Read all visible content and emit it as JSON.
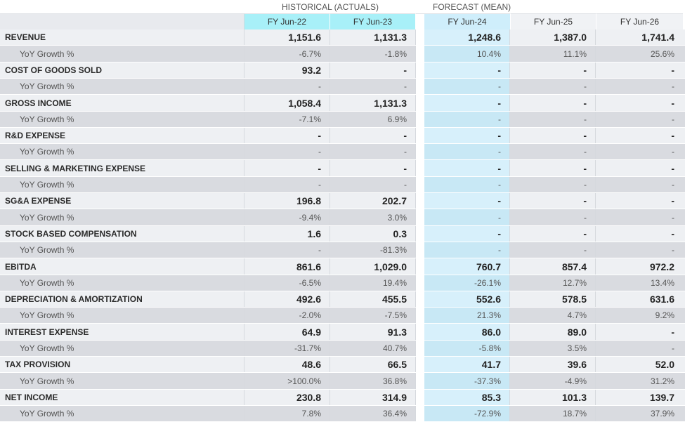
{
  "header": {
    "historical_label": "HISTORICAL (ACTUALS)",
    "forecast_label": "FORECAST (MEAN)",
    "columns": [
      "FY Jun-22",
      "FY Jun-23",
      "FY Jun-24",
      "FY Jun-25",
      "FY Jun-26"
    ]
  },
  "rows": [
    {
      "label": "REVENUE",
      "values": [
        "1,151.6",
        "1,131.3",
        "1,248.6",
        "1,387.0",
        "1,741.4"
      ],
      "growth_label": "YoY Growth %",
      "growth": [
        "-6.7%",
        "-1.8%",
        "10.4%",
        "11.1%",
        "25.6%"
      ]
    },
    {
      "label": "COST OF GOODS SOLD",
      "values": [
        "93.2",
        "-",
        "-",
        "-",
        "-"
      ],
      "growth_label": "YoY Growth %",
      "growth": [
        "-",
        "-",
        "-",
        "-",
        "-"
      ]
    },
    {
      "label": "GROSS INCOME",
      "values": [
        "1,058.4",
        "1,131.3",
        "-",
        "-",
        "-"
      ],
      "growth_label": "YoY Growth %",
      "growth": [
        "-7.1%",
        "6.9%",
        "-",
        "-",
        "-"
      ]
    },
    {
      "label": "R&D EXPENSE",
      "values": [
        "-",
        "-",
        "-",
        "-",
        "-"
      ],
      "growth_label": "YoY Growth %",
      "growth": [
        "-",
        "-",
        "-",
        "-",
        "-"
      ]
    },
    {
      "label": "SELLING & MARKETING EXPENSE",
      "values": [
        "-",
        "-",
        "-",
        "-",
        "-"
      ],
      "growth_label": "YoY Growth %",
      "growth": [
        "-",
        "-",
        "-",
        "-",
        "-"
      ]
    },
    {
      "label": "SG&A EXPENSE",
      "values": [
        "196.8",
        "202.7",
        "-",
        "-",
        "-"
      ],
      "growth_label": "YoY Growth %",
      "growth": [
        "-9.4%",
        "3.0%",
        "-",
        "-",
        "-"
      ]
    },
    {
      "label": "STOCK BASED COMPENSATION",
      "values": [
        "1.6",
        "0.3",
        "-",
        "-",
        "-"
      ],
      "growth_label": "YoY Growth %",
      "growth": [
        "-",
        "-81.3%",
        "-",
        "-",
        "-"
      ]
    },
    {
      "label": "EBITDA",
      "values": [
        "861.6",
        "1,029.0",
        "760.7",
        "857.4",
        "972.2"
      ],
      "growth_label": "YoY Growth %",
      "growth": [
        "-6.5%",
        "19.4%",
        "-26.1%",
        "12.7%",
        "13.4%"
      ]
    },
    {
      "label": "DEPRECIATION & AMORTIZATION",
      "values": [
        "492.6",
        "455.5",
        "552.6",
        "578.5",
        "631.6"
      ],
      "growth_label": "YoY Growth %",
      "growth": [
        "-2.0%",
        "-7.5%",
        "21.3%",
        "4.7%",
        "9.2%"
      ]
    },
    {
      "label": "INTEREST EXPENSE",
      "values": [
        "64.9",
        "91.3",
        "86.0",
        "89.0",
        "-"
      ],
      "growth_label": "YoY Growth %",
      "growth": [
        "-31.7%",
        "40.7%",
        "-5.8%",
        "3.5%",
        "-"
      ]
    },
    {
      "label": "TAX PROVISION",
      "values": [
        "48.6",
        "66.5",
        "41.7",
        "39.6",
        "52.0"
      ],
      "growth_label": "YoY Growth %",
      "growth": [
        ">100.0%",
        "36.8%",
        "-37.3%",
        "-4.9%",
        "31.2%"
      ]
    },
    {
      "label": "NET INCOME",
      "values": [
        "230.8",
        "314.9",
        "85.3",
        "101.3",
        "139.7"
      ],
      "growth_label": "YoY Growth %",
      "growth": [
        "7.8%",
        "36.4%",
        "-72.9%",
        "18.7%",
        "37.9%"
      ]
    }
  ]
}
